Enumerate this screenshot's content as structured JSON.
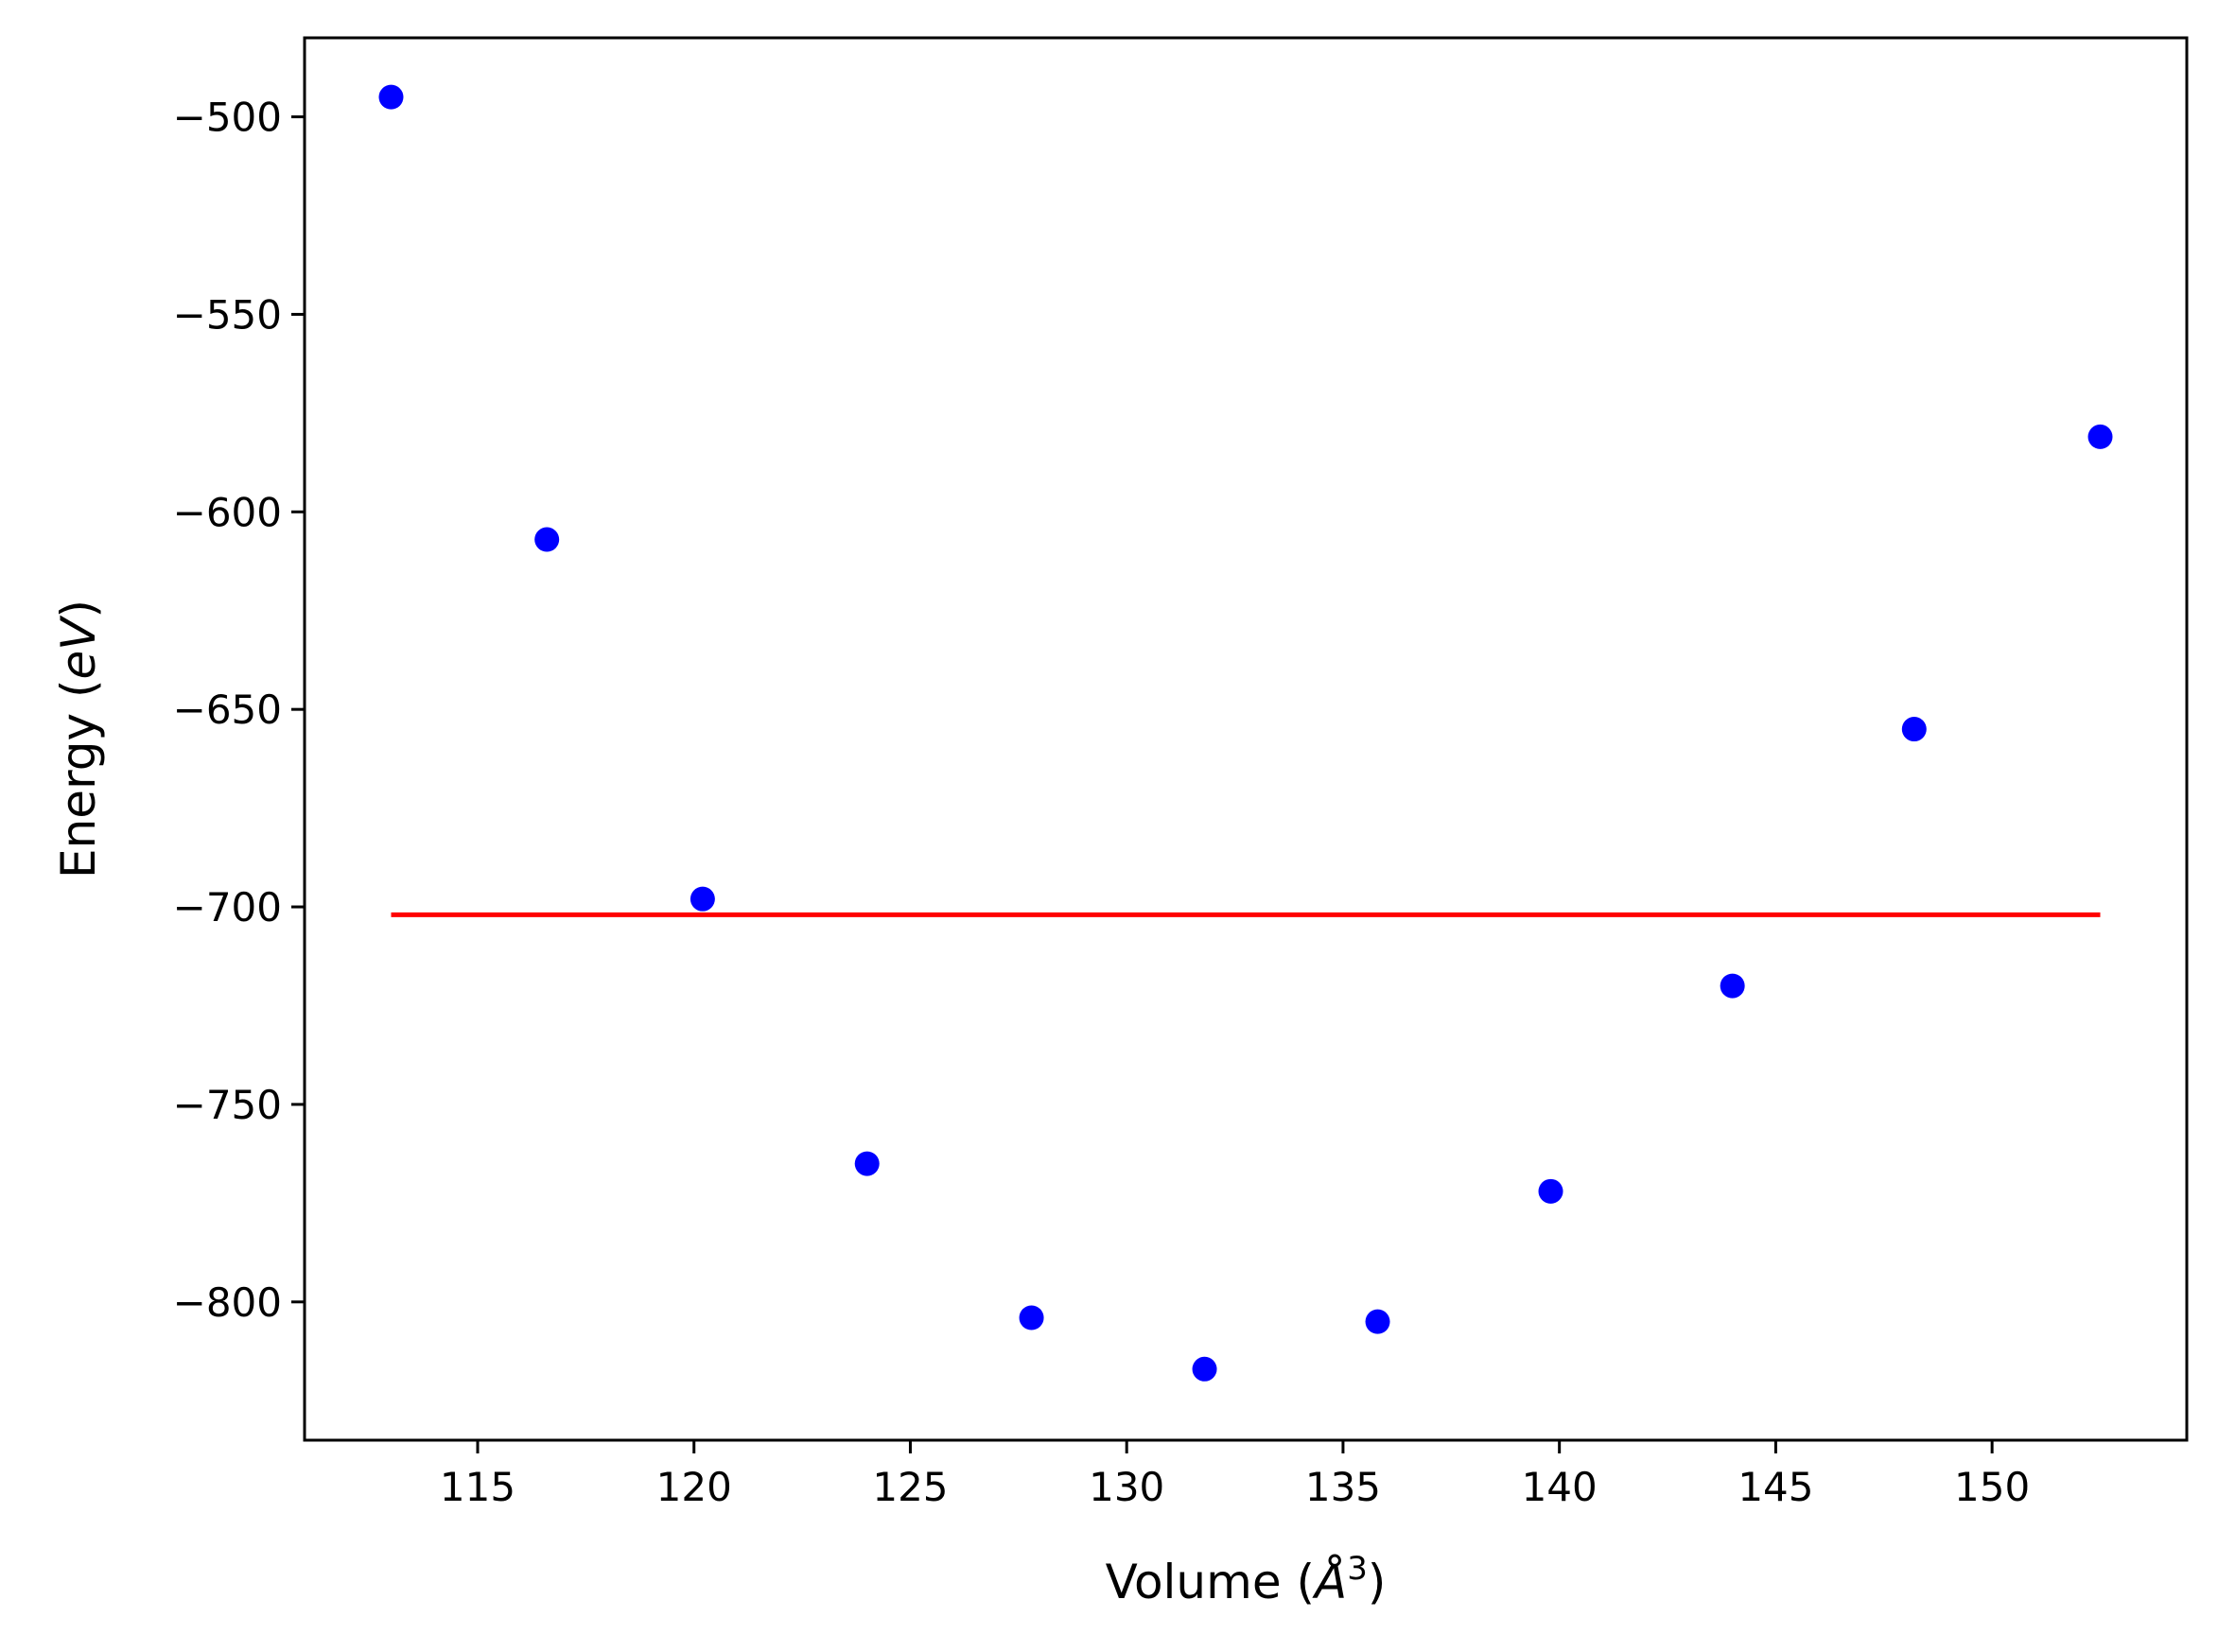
{
  "chart_data": {
    "type": "scatter",
    "title": "",
    "xlabel": "Volume (Å³)",
    "ylabel": "Energy (eV)",
    "xlabel_parts": {
      "prefix": "Volume (",
      "symbol": "Å",
      "sup": "3",
      "suffix": ")"
    },
    "ylabel_parts": {
      "prefix": "Energy (",
      "symbol": "eV",
      "suffix": ")"
    },
    "xlim": [
      111,
      154.5
    ],
    "ylim": [
      -835,
      -480
    ],
    "xticks": [
      115,
      120,
      125,
      130,
      135,
      140,
      145,
      150
    ],
    "yticks": [
      -500,
      -550,
      -600,
      -650,
      -700,
      -750,
      -800
    ],
    "ytick_labels": [
      "−500",
      "−550",
      "−600",
      "−650",
      "−700",
      "−750",
      "−800"
    ],
    "grid": false,
    "series": [
      {
        "kind": "scatter",
        "color": "#0000ff",
        "x": [
          113.0,
          116.6,
          120.2,
          124.0,
          127.8,
          131.8,
          135.8,
          139.8,
          144.0,
          148.2,
          152.5
        ],
        "y": [
          -495,
          -607,
          -698,
          -765,
          -804,
          -817,
          -805,
          -772,
          -720,
          -655,
          -581
        ]
      },
      {
        "kind": "line",
        "color": "#ff0000",
        "x": [
          113.0,
          152.5
        ],
        "y": [
          -702,
          -702
        ]
      }
    ]
  }
}
